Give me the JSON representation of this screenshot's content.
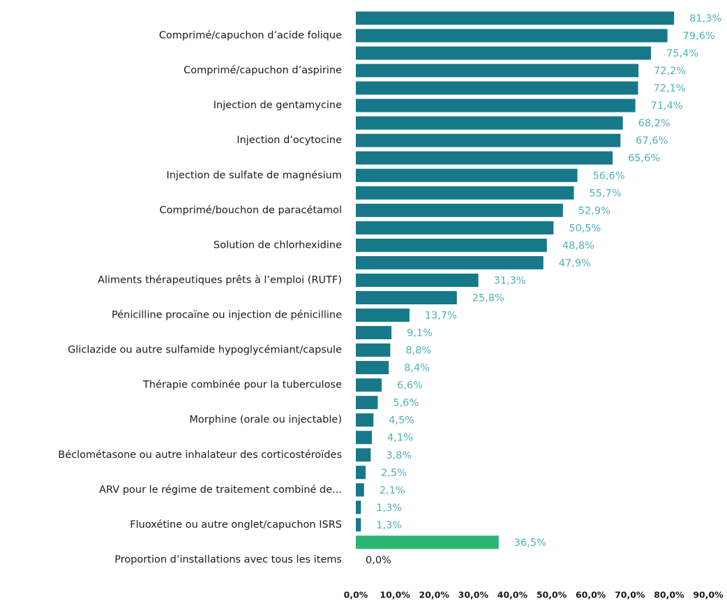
{
  "chart_data": {
    "type": "bar",
    "orientation": "horizontal",
    "categories": [
      null,
      "Comprimé/capuchon d’acide folique",
      null,
      "Comprimé/capuchon d’aspirine",
      null,
      "Injection de gentamycine",
      null,
      "Injection d’ocytocine",
      null,
      "Injection de sulfate de magnésium",
      null,
      "Comprimé/bouchon de paracétamol",
      null,
      "Solution de chlorhexidine",
      null,
      "Aliments thérapeutiques prêts à l’emploi (RUTF)",
      null,
      "Pénicilline procaïne ou injection de pénicilline",
      null,
      "Gliclazide ou autre sulfamide hypoglycémiant/capsule",
      null,
      "Thérapie combinée pour la tuberculose",
      null,
      "Morphine (orale ou injectable)",
      null,
      "Béclométasone ou autre inhalateur des corticostéroïdes",
      null,
      "ARV pour le régime de traitement combiné de...",
      null,
      "Fluoxétine ou autre onglet/capuchon ISRS",
      null,
      "Proportion d’installations avec tous les items"
    ],
    "values": [
      81.3,
      79.6,
      75.4,
      72.2,
      72.1,
      71.4,
      68.2,
      67.6,
      65.6,
      56.6,
      55.7,
      52.9,
      50.5,
      48.8,
      47.9,
      31.3,
      25.8,
      13.7,
      9.1,
      8.8,
      8.4,
      6.6,
      5.6,
      4.5,
      4.1,
      3.8,
      2.5,
      2.1,
      1.3,
      1.3,
      36.5,
      0.0
    ],
    "value_labels": [
      "81,3%",
      "79,6%",
      "75,4%",
      "72,2%",
      "72,1%",
      "71,4%",
      "68,2%",
      "67,6%",
      "65,6%",
      "56,6%",
      "55,7%",
      "52,9%",
      "50,5%",
      "48,8%",
      "47,9%",
      "31,3%",
      "25,8%",
      "13,7%",
      "9,1%",
      "8,8%",
      "8,4%",
      "6,6%",
      "5,6%",
      "4,5%",
      "4,1%",
      "3,8%",
      "2,5%",
      "2,1%",
      "1,3%",
      "1,3%",
      "36,5%",
      "0,0%"
    ],
    "color": "#17788a",
    "highlight_color": "#2bb673",
    "highlight_index": 30,
    "value_label_color": "#4fb1b8",
    "xlim": [
      0,
      90
    ],
    "xticks": [
      {
        "value": 0,
        "label": "0,0%"
      },
      {
        "value": 10,
        "label": "10,0%"
      },
      {
        "value": 20,
        "label": "20,0%"
      },
      {
        "value": 30,
        "label": "30,0%"
      },
      {
        "value": 40,
        "label": "40,0%"
      },
      {
        "value": 50,
        "label": "50,0%"
      },
      {
        "value": 60,
        "label": "60,0%"
      },
      {
        "value": 70,
        "label": "70,0%"
      },
      {
        "value": 80,
        "label": "80,0%"
      },
      {
        "value": 90,
        "label": "90,0%"
      }
    ],
    "grid": false
  }
}
